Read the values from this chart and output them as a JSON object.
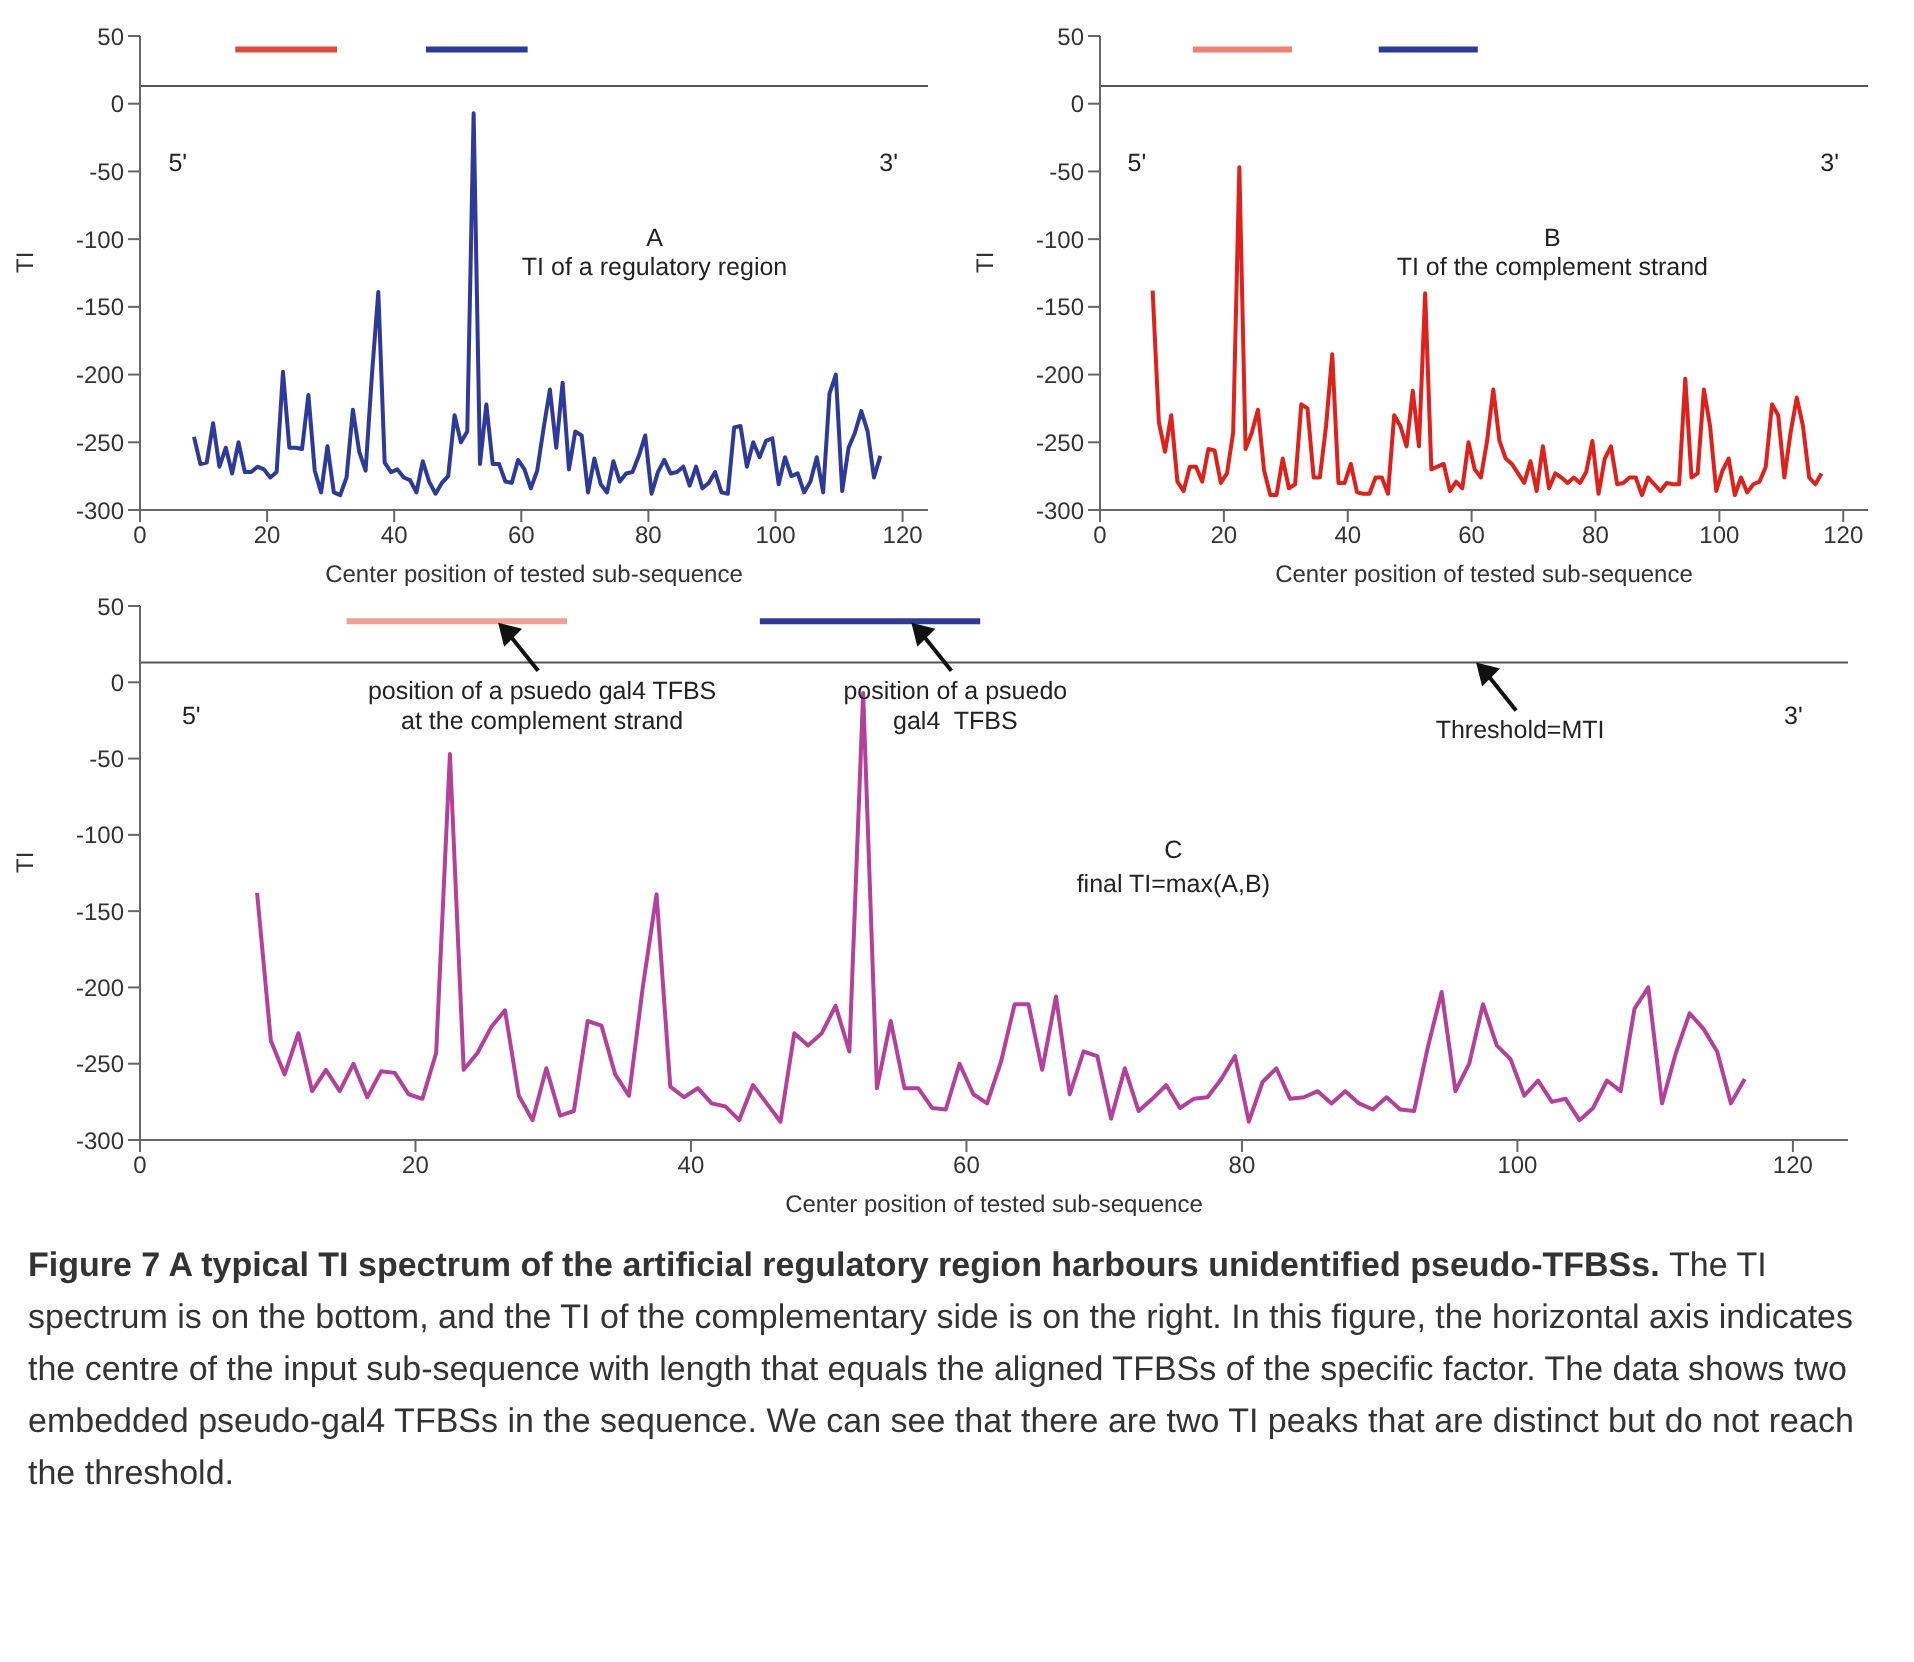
{
  "chart_data": [
    {
      "type": "line",
      "xlabel": "Center position of tested sub-sequence",
      "ylabel": "TI",
      "xlim": [
        0,
        124
      ],
      "ylim": [
        -300,
        50
      ],
      "xticks": [
        0,
        20,
        40,
        60,
        80,
        100,
        120
      ],
      "yticks": [
        -300,
        -250,
        -200,
        -150,
        -100,
        -50,
        0,
        50
      ],
      "x": [
        8.5,
        9.5,
        10.5,
        11.5,
        12.5,
        13.5,
        14.5,
        15.5,
        16.5,
        17.5,
        18.5,
        19.5,
        20.5,
        21.5,
        22.5,
        23.5,
        24.5,
        25.5,
        26.5,
        27.5,
        28.5,
        29.5,
        30.5,
        31.5,
        32.5,
        33.5,
        34.5,
        35.5,
        36.5,
        37.5,
        38.5,
        39.5,
        40.5,
        41.5,
        42.5,
        43.5,
        44.5,
        45.5,
        46.5,
        47.5,
        48.5,
        49.5,
        50.5,
        51.5,
        52.5,
        53.5,
        54.5,
        55.5,
        56.5,
        57.5,
        58.5,
        59.5,
        60.5,
        61.5,
        62.5,
        63.5,
        64.5,
        65.5,
        66.5,
        67.5,
        68.5,
        69.5,
        70.5,
        71.5,
        72.5,
        73.5,
        74.5,
        75.5,
        76.5,
        77.5,
        78.5,
        79.5,
        80.5,
        81.5,
        82.5,
        83.5,
        84.5,
        85.5,
        86.5,
        87.5,
        88.5,
        89.5,
        90.5,
        91.5,
        92.5,
        93.5,
        94.5,
        95.5,
        96.5,
        97.5,
        98.5,
        99.5,
        100.5,
        101.5,
        102.5,
        103.5,
        104.5,
        105.5,
        106.5,
        107.5,
        108.5,
        109.5,
        110.5,
        111.5,
        112.5,
        113.5,
        114.5,
        115.5,
        116.5
      ],
      "series": [
        {
          "color": "#2e3a9a",
          "values": [
            -246,
            -266,
            -265,
            -236,
            -268,
            -254,
            -273,
            -250,
            -272,
            -272,
            -268,
            -270,
            -276,
            -272,
            -198,
            -254,
            -254,
            -255,
            -215,
            -271,
            -287,
            -253,
            -287,
            -289,
            -276,
            -226,
            -257,
            -271,
            -200,
            -139,
            -265,
            -272,
            -270,
            -276,
            -278,
            -287,
            -264,
            -279,
            -288,
            -280,
            -275,
            -230,
            -250,
            -242,
            -7,
            -266,
            -222,
            -266,
            -266,
            -279,
            -280,
            -263,
            -270,
            -284,
            -271,
            -240,
            -211,
            -254,
            -206,
            -270,
            -242,
            -245,
            -287,
            -262,
            -281,
            -287,
            -264,
            -279,
            -273,
            -272,
            -260,
            -245,
            -288,
            -272,
            -263,
            -273,
            -272,
            -268,
            -282,
            -268,
            -284,
            -280,
            -272,
            -287,
            -288,
            -239,
            -238,
            -268,
            -250,
            -261,
            -249,
            -247,
            -281,
            -261,
            -275,
            -273,
            -287,
            -279,
            -261,
            -287,
            -214,
            -200,
            -286,
            -254,
            -243,
            -227,
            -242,
            -276,
            -260
          ]
        },
        {
          "color": "#e04a3a",
          "x": [
            15,
            31
          ],
          "values": [
            40,
            40
          ]
        },
        {
          "color": "#2e3a9a",
          "x": [
            45,
            61
          ],
          "values": [
            40,
            40
          ]
        }
      ],
      "ref_lines": [
        {
          "axis": "y",
          "value": 13,
          "color": "#555555"
        }
      ],
      "annotations": [
        "5'",
        "3'",
        "A",
        "TI of a regulatory region"
      ]
    },
    {
      "type": "line",
      "xlabel": "Center position of tested sub-sequence",
      "ylabel": "TI",
      "xlim": [
        0,
        124
      ],
      "ylim": [
        -300,
        50
      ],
      "xticks": [
        0,
        20,
        40,
        60,
        80,
        100,
        120
      ],
      "yticks": [
        -300,
        -250,
        -200,
        -150,
        -100,
        -50,
        0,
        50
      ],
      "x": [
        8.5,
        9.5,
        10.5,
        11.5,
        12.5,
        13.5,
        14.5,
        15.5,
        16.5,
        17.5,
        18.5,
        19.5,
        20.5,
        21.5,
        22.5,
        23.5,
        24.5,
        25.5,
        26.5,
        27.5,
        28.5,
        29.5,
        30.5,
        31.5,
        32.5,
        33.5,
        34.5,
        35.5,
        36.5,
        37.5,
        38.5,
        39.5,
        40.5,
        41.5,
        42.5,
        43.5,
        44.5,
        45.5,
        46.5,
        47.5,
        48.5,
        49.5,
        50.5,
        51.5,
        52.5,
        53.5,
        54.5,
        55.5,
        56.5,
        57.5,
        58.5,
        59.5,
        60.5,
        61.5,
        62.5,
        63.5,
        64.5,
        65.5,
        66.5,
        67.5,
        68.5,
        69.5,
        70.5,
        71.5,
        72.5,
        73.5,
        74.5,
        75.5,
        76.5,
        77.5,
        78.5,
        79.5,
        80.5,
        81.5,
        82.5,
        83.5,
        84.5,
        85.5,
        86.5,
        87.5,
        88.5,
        89.5,
        90.5,
        91.5,
        92.5,
        93.5,
        94.5,
        95.5,
        96.5,
        97.5,
        98.5,
        99.5,
        100.5,
        101.5,
        102.5,
        103.5,
        104.5,
        105.5,
        106.5,
        107.5,
        108.5,
        109.5,
        110.5,
        111.5,
        112.5,
        113.5,
        114.5,
        115.5,
        116.5
      ],
      "series": [
        {
          "color": "#e0201a",
          "values": [
            -138,
            -235,
            -257,
            -230,
            -279,
            -286,
            -268,
            -268,
            -279,
            -255,
            -256,
            -280,
            -273,
            -243,
            -47,
            -255,
            -243,
            -226,
            -271,
            -289,
            -289,
            -262,
            -284,
            -281,
            -222,
            -225,
            -276,
            -276,
            -238,
            -185,
            -280,
            -280,
            -266,
            -287,
            -288,
            -288,
            -276,
            -276,
            -288,
            -230,
            -238,
            -253,
            -212,
            -253,
            -140,
            -270,
            -268,
            -266,
            -286,
            -279,
            -284,
            -250,
            -270,
            -276,
            -249,
            -211,
            -249,
            -262,
            -266,
            -273,
            -280,
            -264,
            -286,
            -253,
            -284,
            -273,
            -276,
            -280,
            -276,
            -280,
            -272,
            -249,
            -288,
            -262,
            -253,
            -281,
            -280,
            -276,
            -276,
            -289,
            -276,
            -281,
            -286,
            -280,
            -281,
            -281,
            -203,
            -276,
            -273,
            -211,
            -238,
            -286,
            -271,
            -262,
            -289,
            -276,
            -287,
            -281,
            -279,
            -268,
            -222,
            -230,
            -276,
            -243,
            -217,
            -238,
            -276,
            -281,
            -273
          ]
        },
        {
          "color": "#f08070",
          "x": [
            15,
            31
          ],
          "values": [
            40,
            40
          ]
        },
        {
          "color": "#2e3a9a",
          "x": [
            45,
            61
          ],
          "values": [
            40,
            40
          ]
        }
      ],
      "ref_lines": [
        {
          "axis": "y",
          "value": 13,
          "color": "#555555"
        }
      ],
      "annotations": [
        "5'",
        "3'",
        "B",
        "TI of the complement strand"
      ]
    },
    {
      "type": "line",
      "xlabel": "Center position of tested sub-sequence",
      "ylabel": "TI",
      "xlim": [
        0,
        124
      ],
      "ylim": [
        -300,
        50
      ],
      "xticks": [
        0,
        20,
        40,
        60,
        80,
        100,
        120
      ],
      "yticks": [
        -300,
        -250,
        -200,
        -150,
        -100,
        -50,
        0,
        50
      ],
      "x": [
        8.5,
        9.5,
        10.5,
        11.5,
        12.5,
        13.5,
        14.5,
        15.5,
        16.5,
        17.5,
        18.5,
        19.5,
        20.5,
        21.5,
        22.5,
        23.5,
        24.5,
        25.5,
        26.5,
        27.5,
        28.5,
        29.5,
        30.5,
        31.5,
        32.5,
        33.5,
        34.5,
        35.5,
        36.5,
        37.5,
        38.5,
        39.5,
        40.5,
        41.5,
        42.5,
        43.5,
        44.5,
        45.5,
        46.5,
        47.5,
        48.5,
        49.5,
        50.5,
        51.5,
        52.5,
        53.5,
        54.5,
        55.5,
        56.5,
        57.5,
        58.5,
        59.5,
        60.5,
        61.5,
        62.5,
        63.5,
        64.5,
        65.5,
        66.5,
        67.5,
        68.5,
        69.5,
        70.5,
        71.5,
        72.5,
        73.5,
        74.5,
        75.5,
        76.5,
        77.5,
        78.5,
        79.5,
        80.5,
        81.5,
        82.5,
        83.5,
        84.5,
        85.5,
        86.5,
        87.5,
        88.5,
        89.5,
        90.5,
        91.5,
        92.5,
        93.5,
        94.5,
        95.5,
        96.5,
        97.5,
        98.5,
        99.5,
        100.5,
        101.5,
        102.5,
        103.5,
        104.5,
        105.5,
        106.5,
        107.5,
        108.5,
        109.5,
        110.5,
        111.5,
        112.5,
        113.5,
        114.5,
        115.5,
        116.5
      ],
      "series": [
        {
          "color": "#b5409a",
          "values": [
            -138,
            -235,
            -257,
            -230,
            -268,
            -254,
            -268,
            -250,
            -272,
            -255,
            -256,
            -270,
            -273,
            -243,
            -47,
            -254,
            -243,
            -226,
            -215,
            -271,
            -287,
            -253,
            -284,
            -281,
            -222,
            -225,
            -257,
            -271,
            -200,
            -139,
            -265,
            -272,
            -266,
            -276,
            -278,
            -287,
            -264,
            -276,
            -288,
            -230,
            -238,
            -230,
            -212,
            -242,
            -7,
            -266,
            -222,
            -266,
            -266,
            -279,
            -280,
            -250,
            -270,
            -276,
            -249,
            -211,
            -211,
            -254,
            -206,
            -270,
            -242,
            -245,
            -286,
            -253,
            -281,
            -273,
            -264,
            -279,
            -273,
            -272,
            -260,
            -245,
            -288,
            -262,
            -253,
            -273,
            -272,
            -268,
            -276,
            -268,
            -276,
            -280,
            -272,
            -280,
            -281,
            -239,
            -203,
            -268,
            -250,
            -211,
            -238,
            -247,
            -271,
            -261,
            -275,
            -273,
            -287,
            -279,
            -261,
            -268,
            -214,
            -200,
            -276,
            -243,
            -217,
            -227,
            -242,
            -276,
            -260
          ]
        },
        {
          "color": "#f0a090",
          "x": [
            15,
            31
          ],
          "values": [
            40,
            40
          ]
        },
        {
          "color": "#2e3a9a",
          "x": [
            45,
            61
          ],
          "values": [
            40,
            40
          ]
        }
      ],
      "ref_lines": [
        {
          "axis": "y",
          "value": 13,
          "color": "#555555"
        }
      ],
      "annotations": [
        "5'",
        "3'",
        {
          "text": "position of a psuedo gal4 TFBS\nat the complement strand",
          "x": 26,
          "y": 39
        },
        {
          "text": "position of a psuedo\ngal4  TFBS",
          "x": 56,
          "y": 39
        },
        {
          "text": "Threshold=MTI",
          "x": 97,
          "y": 13
        },
        "C",
        "final TI=max(A,B)"
      ]
    },
    {
      "type": "other",
      "title": "Figure 7 A typical TI spectrum of the artificial regulatory region harbours unidentified pseudo-TFBSs.",
      "annotations": [
        "The TI spectrum is on the bottom, and the TI of the complementary side is on the right. In this figure, the horizontal axis indicates the centre of the input sub-sequence with length that equals the aligned TFBSs of the specific factor. The data shows two embedded pseudo-gal4 TFBSs in the sequence. We can see that there are two TI peaks that are distinct but do not reach the threshold."
      ]
    }
  ]
}
